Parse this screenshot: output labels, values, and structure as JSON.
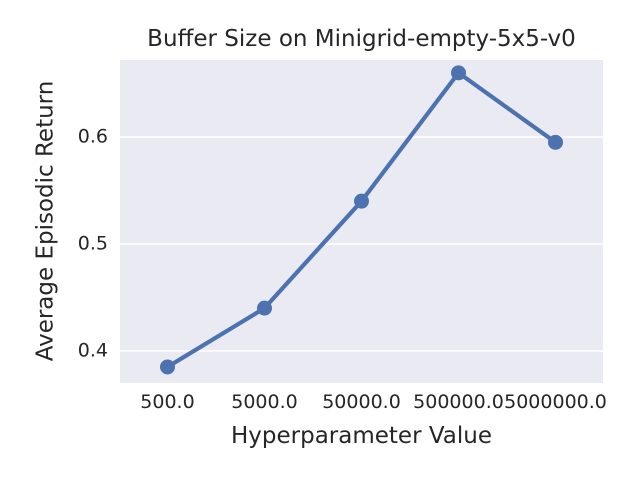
{
  "chart_data": {
    "type": "line",
    "title": "Buffer Size on Minigrid-empty-5x5-v0",
    "xlabel": "Hyperparameter Value",
    "ylabel": "Average Episodic Return",
    "x_scale": "log-categorical",
    "categories": [
      "500.0",
      "5000.0",
      "50000.0",
      "500000.0",
      "5000000.0"
    ],
    "x": [
      500,
      5000,
      50000,
      500000,
      5000000
    ],
    "series": [
      {
        "name": "Buffer Size",
        "values": [
          0.385,
          0.44,
          0.54,
          0.66,
          0.595
        ]
      }
    ],
    "y_ticks": [
      0.4,
      0.5,
      0.6
    ],
    "y_tick_labels": [
      "0.4",
      "0.5",
      "0.6"
    ],
    "ylim": [
      0.37,
      0.672
    ],
    "grid": "horizontal-only",
    "legend": "none",
    "style": {
      "line_color": "#4c72b0",
      "marker_color": "#4c72b0",
      "plot_bg_color": "#eaeaf2",
      "grid_color": "#ffffff",
      "text_color": "#262626",
      "figure_bg_color": "#ffffff"
    }
  }
}
